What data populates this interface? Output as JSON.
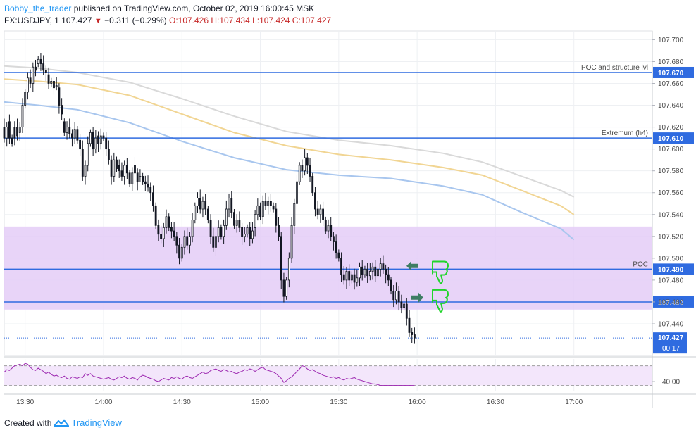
{
  "header": {
    "author": "Bobby_the_trader",
    "published": "published on TradingView.com, October 02, 2019 16:00:45 MSK",
    "symbol": "FX:USDJPY, 1",
    "last": "107.427",
    "change": "−0.311 (−0.29%)",
    "ohlc": "O:107.426 H:107.434 L:107.424 C:107.427"
  },
  "footer": {
    "created_with": "Created with",
    "brand": "TradingView"
  },
  "colors": {
    "grid": "#eef0f3",
    "level": "#2f6be0",
    "zone": "#e4cdf7",
    "up": "#131722",
    "ma_blue": "#a8c6ee",
    "ma_gold": "#f1d593",
    "ma_gray": "#d9d9d9",
    "rsi": "#9c27b0",
    "rsi_band": "#f3e6fb",
    "thumb": "#21d42b",
    "arrow": "#3e7d63"
  },
  "chart_data": {
    "type": "candlestick",
    "y_range": [
      107.411,
      107.708
    ],
    "y_ticks": [
      "107.440",
      "107.460",
      "107.480",
      "107.500",
      "107.520",
      "107.540",
      "107.560",
      "107.580",
      "107.600",
      "107.620",
      "107.640",
      "107.660",
      "107.680",
      "107.700"
    ],
    "x_ticks": [
      "13:30",
      "14:00",
      "14:30",
      "15:00",
      "15:30",
      "16:00",
      "16:30",
      "17:00"
    ],
    "x_range_minutes": [
      802,
      1050
    ],
    "levels": [
      {
        "price": 107.67,
        "label": "POC and structure lvl",
        "tag": "107.670"
      },
      {
        "price": 107.61,
        "label": "Extremum (h4)",
        "tag": "107.610"
      },
      {
        "price": 107.49,
        "label": "POC",
        "tag": "107.490"
      },
      {
        "price": 107.46,
        "label": "",
        "tag": "107.460"
      }
    ],
    "zone": [
      107.453,
      107.529
    ],
    "last_price": {
      "price": 107.427,
      "tag": "107.427",
      "countdown": "00:17"
    },
    "ma": {
      "blue": [
        [
          802,
          107.643
        ],
        [
          815,
          107.64
        ],
        [
          830,
          107.636
        ],
        [
          850,
          107.624
        ],
        [
          870,
          107.607
        ],
        [
          890,
          107.592
        ],
        [
          910,
          107.581
        ],
        [
          930,
          107.576
        ],
        [
          950,
          107.573
        ],
        [
          970,
          107.566
        ],
        [
          985,
          107.558
        ],
        [
          1000,
          107.542
        ],
        [
          1015,
          107.527
        ],
        [
          1020,
          107.517
        ]
      ],
      "gold": [
        [
          802,
          107.664
        ],
        [
          815,
          107.662
        ],
        [
          830,
          107.659
        ],
        [
          850,
          107.649
        ],
        [
          870,
          107.632
        ],
        [
          890,
          107.615
        ],
        [
          910,
          107.603
        ],
        [
          930,
          107.595
        ],
        [
          950,
          107.59
        ],
        [
          970,
          107.583
        ],
        [
          985,
          107.576
        ],
        [
          1000,
          107.562
        ],
        [
          1015,
          107.548
        ],
        [
          1020,
          107.54
        ]
      ],
      "gray": [
        [
          802,
          107.676
        ],
        [
          815,
          107.674
        ],
        [
          830,
          107.67
        ],
        [
          850,
          107.661
        ],
        [
          870,
          107.646
        ],
        [
          890,
          107.63
        ],
        [
          910,
          107.616
        ],
        [
          930,
          107.608
        ],
        [
          950,
          107.603
        ],
        [
          970,
          107.596
        ],
        [
          985,
          107.588
        ],
        [
          1000,
          107.575
        ],
        [
          1015,
          107.562
        ],
        [
          1020,
          107.556
        ]
      ]
    },
    "candles": [
      [
        802,
        107.62,
        107.61
      ],
      [
        803,
        107.61,
        107.62
      ],
      [
        804,
        107.625,
        107.61
      ],
      [
        805,
        107.61,
        107.605
      ],
      [
        806,
        107.62,
        107.61
      ],
      [
        807,
        107.62,
        107.612
      ],
      [
        808,
        107.615,
        107.62
      ],
      [
        809,
        107.62,
        107.64
      ],
      [
        810,
        107.64,
        107.652
      ],
      [
        811,
        107.652,
        107.665
      ],
      [
        812,
        107.665,
        107.66
      ],
      [
        813,
        107.66,
        107.675
      ],
      [
        814,
        107.675,
        107.672
      ],
      [
        815,
        107.678,
        107.682
      ],
      [
        816,
        107.682,
        107.678
      ],
      [
        817,
        107.678,
        107.672
      ],
      [
        818,
        107.672,
        107.67
      ],
      [
        819,
        107.668,
        107.66
      ],
      [
        820,
        107.66,
        107.662
      ],
      [
        821,
        107.662,
        107.656
      ],
      [
        822,
        107.658,
        107.658
      ],
      [
        823,
        107.656,
        107.64
      ],
      [
        824,
        107.64,
        107.632
      ],
      [
        825,
        107.625,
        107.615
      ],
      [
        826,
        107.615,
        107.62
      ],
      [
        827,
        107.62,
        107.614
      ],
      [
        828,
        107.614,
        107.61
      ],
      [
        829,
        107.61,
        107.618
      ],
      [
        830,
        107.618,
        107.608
      ],
      [
        831,
        107.608,
        107.6
      ],
      [
        832,
        107.6,
        107.575
      ],
      [
        833,
        107.575,
        107.585
      ],
      [
        834,
        107.585,
        107.605
      ],
      [
        835,
        107.605,
        107.615
      ],
      [
        836,
        107.615,
        107.6
      ],
      [
        837,
        107.6,
        107.61
      ],
      [
        838,
        107.612,
        107.605
      ],
      [
        839,
        107.605,
        107.612
      ],
      [
        840,
        107.612,
        107.61
      ],
      [
        841,
        107.61,
        107.6
      ],
      [
        842,
        107.6,
        107.59
      ],
      [
        843,
        107.59,
        107.575
      ],
      [
        844,
        107.575,
        107.59
      ],
      [
        845,
        107.59,
        107.582
      ],
      [
        846,
        107.585,
        107.58
      ],
      [
        847,
        107.58,
        107.575
      ],
      [
        848,
        107.575,
        107.585
      ],
      [
        849,
        107.585,
        107.578
      ],
      [
        850,
        107.578,
        107.568
      ],
      [
        851,
        107.568,
        107.578
      ],
      [
        852,
        107.585,
        107.578
      ],
      [
        853,
        107.578,
        107.57
      ],
      [
        854,
        107.575,
        107.575
      ],
      [
        855,
        107.575,
        107.57
      ],
      [
        856,
        107.57,
        107.568
      ],
      [
        857,
        107.568,
        107.565
      ],
      [
        858,
        107.565,
        107.56
      ],
      [
        859,
        107.56,
        107.548
      ],
      [
        860,
        107.548,
        107.53
      ],
      [
        861,
        107.53,
        107.522
      ],
      [
        862,
        107.522,
        107.518
      ],
      [
        863,
        107.518,
        107.528
      ],
      [
        864,
        107.528,
        107.538
      ],
      [
        865,
        107.538,
        107.528
      ],
      [
        866,
        107.528,
        107.525
      ],
      [
        867,
        107.525,
        107.52
      ],
      [
        868,
        107.52,
        107.512
      ],
      [
        869,
        107.512,
        107.5
      ],
      [
        870,
        107.5,
        107.51
      ],
      [
        871,
        107.51,
        107.52
      ],
      [
        872,
        107.52,
        107.512
      ],
      [
        873,
        107.512,
        107.52
      ],
      [
        874,
        107.52,
        107.535
      ],
      [
        875,
        107.535,
        107.548
      ],
      [
        876,
        107.548,
        107.555
      ],
      [
        877,
        107.555,
        107.545
      ],
      [
        878,
        107.545,
        107.552
      ],
      [
        879,
        107.552,
        107.545
      ],
      [
        880,
        107.545,
        107.535
      ],
      [
        881,
        107.535,
        107.52
      ],
      [
        882,
        107.52,
        107.51
      ],
      [
        883,
        107.51,
        107.52
      ],
      [
        884,
        107.52,
        107.528
      ],
      [
        885,
        107.528,
        107.52
      ],
      [
        886,
        107.52,
        107.53
      ],
      [
        887,
        107.53,
        107.545
      ],
      [
        888,
        107.545,
        107.555
      ],
      [
        889,
        107.555,
        107.542
      ],
      [
        890,
        107.542,
        107.53
      ],
      [
        891,
        107.53,
        107.535
      ],
      [
        892,
        107.535,
        107.528
      ],
      [
        893,
        107.528,
        107.52
      ],
      [
        894,
        107.52,
        107.522
      ],
      [
        895,
        107.522,
        107.528
      ],
      [
        896,
        107.528,
        107.518
      ],
      [
        897,
        107.518,
        107.525
      ],
      [
        898,
        107.528,
        107.54
      ],
      [
        899,
        107.54,
        107.548
      ],
      [
        900,
        107.548,
        107.538
      ],
      [
        901,
        107.538,
        107.552
      ],
      [
        902,
        107.552,
        107.548
      ],
      [
        903,
        107.548,
        107.552
      ],
      [
        904,
        107.552,
        107.548
      ],
      [
        905,
        107.548,
        107.545
      ],
      [
        906,
        107.545,
        107.53
      ],
      [
        907,
        107.53,
        107.52
      ],
      [
        908,
        107.52,
        107.48
      ],
      [
        909,
        107.48,
        107.465
      ],
      [
        910,
        107.465,
        107.48
      ],
      [
        911,
        107.48,
        107.5
      ],
      [
        912,
        107.5,
        107.53
      ],
      [
        913,
        107.53,
        107.55
      ],
      [
        914,
        107.55,
        107.57
      ],
      [
        915,
        107.57,
        107.585
      ],
      [
        916,
        107.585,
        107.58
      ],
      [
        917,
        107.58,
        107.592
      ],
      [
        918,
        107.592,
        107.585
      ],
      [
        919,
        107.585,
        107.575
      ],
      [
        920,
        107.575,
        107.56
      ],
      [
        921,
        107.56,
        107.545
      ],
      [
        922,
        107.545,
        107.54
      ],
      [
        923,
        107.54,
        107.545
      ],
      [
        924,
        107.545,
        107.535
      ],
      [
        925,
        107.535,
        107.525
      ],
      [
        926,
        107.525,
        107.53
      ],
      [
        927,
        107.53,
        107.52
      ],
      [
        928,
        107.52,
        107.515
      ],
      [
        929,
        107.515,
        107.505
      ],
      [
        930,
        107.505,
        107.5
      ],
      [
        931,
        107.5,
        107.485
      ],
      [
        932,
        107.485,
        107.48
      ],
      [
        933,
        107.48,
        107.488
      ],
      [
        934,
        107.488,
        107.48
      ],
      [
        935,
        107.48,
        107.485
      ],
      [
        936,
        107.485,
        107.478
      ],
      [
        937,
        107.478,
        107.482
      ],
      [
        938,
        107.482,
        107.492
      ],
      [
        939,
        107.492,
        107.485
      ],
      [
        940,
        107.485,
        107.49
      ],
      [
        941,
        107.49,
        107.484
      ],
      [
        942,
        107.484,
        107.488
      ],
      [
        943,
        107.488,
        107.492
      ],
      [
        944,
        107.492,
        107.484
      ],
      [
        945,
        107.484,
        107.49
      ],
      [
        946,
        107.49,
        107.495
      ],
      [
        947,
        107.495,
        107.49
      ],
      [
        948,
        107.49,
        107.485
      ],
      [
        949,
        107.485,
        107.48
      ],
      [
        950,
        107.48,
        107.47
      ],
      [
        951,
        107.47,
        107.462
      ],
      [
        952,
        107.462,
        107.47
      ],
      [
        953,
        107.47,
        107.46
      ],
      [
        954,
        107.46,
        107.455
      ],
      [
        955,
        107.455,
        107.458
      ],
      [
        956,
        107.458,
        107.445
      ],
      [
        957,
        107.445,
        107.432
      ],
      [
        958,
        107.432,
        107.43
      ],
      [
        959,
        107.43,
        107.427
      ]
    ],
    "rsi": {
      "y_tick": "40.00",
      "values": [
        52,
        55,
        54,
        57,
        60,
        61,
        62,
        60,
        63,
        62,
        58,
        55,
        54,
        57,
        55,
        53,
        50,
        52,
        49,
        47,
        48,
        46,
        45,
        47,
        44,
        43,
        46,
        45,
        44,
        46,
        45,
        50,
        48,
        50,
        47,
        46,
        45,
        44,
        43,
        44,
        45,
        43,
        42,
        44,
        46,
        45,
        47,
        44,
        43,
        45,
        44,
        42,
        46,
        48,
        47,
        45,
        44,
        43,
        41,
        40,
        42,
        44,
        43,
        42,
        45,
        44,
        46,
        44,
        43,
        46,
        47,
        45,
        44,
        46,
        48,
        50,
        52,
        50,
        51,
        54,
        55,
        56,
        54,
        53,
        55,
        54,
        52,
        53,
        51,
        50,
        52,
        53,
        55,
        54,
        56,
        55,
        53,
        55,
        57,
        58,
        55,
        54,
        53,
        52,
        50,
        47,
        44,
        39,
        41,
        44,
        46,
        49,
        53,
        56,
        60,
        59,
        56,
        54,
        55,
        53,
        51,
        50,
        48,
        47,
        46,
        45,
        46,
        44,
        45,
        43,
        42,
        44,
        43,
        44,
        45,
        43,
        42,
        41,
        40,
        39,
        38,
        37,
        37,
        36,
        35,
        35,
        35,
        35,
        35,
        35,
        35,
        35,
        35,
        35,
        35,
        35,
        35,
        35
      ]
    }
  }
}
